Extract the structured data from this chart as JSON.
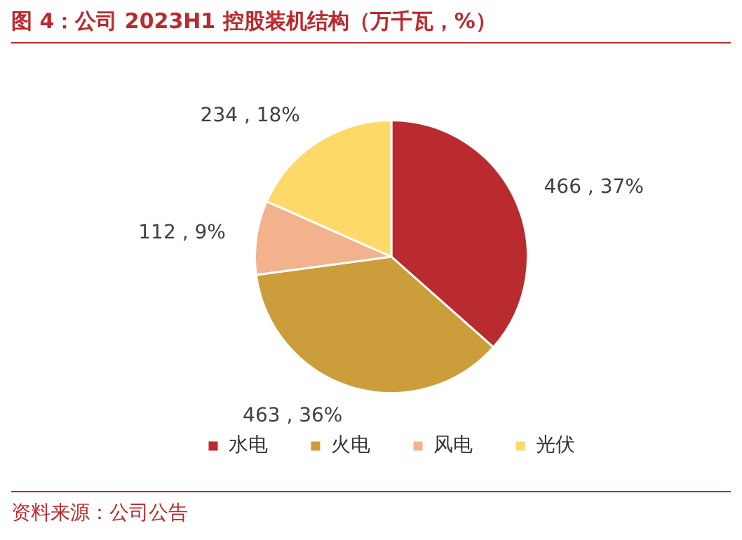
{
  "chart_data": {
    "type": "pie",
    "title": "图 4：公司 2023H1 控股装机结构（万千瓦，%）",
    "categories": [
      "水电",
      "火电",
      "风电",
      "光伏"
    ],
    "values": [
      466,
      463,
      112,
      234
    ],
    "colors": [
      "#b92b2f",
      "#cc9d3b",
      "#f2b28c",
      "#fdd96a"
    ],
    "value_labels": [
      "466 , 37%",
      "463 , 36%",
      "112 , 9%",
      "234 , 18%"
    ],
    "legend": "bottom",
    "annotations": [
      "资料来源：公司公告"
    ]
  }
}
